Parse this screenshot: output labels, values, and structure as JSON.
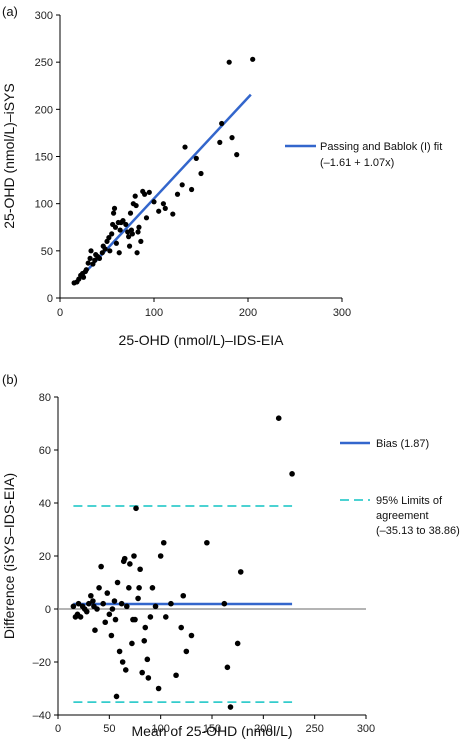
{
  "chart_data": [
    {
      "panel": "(a)",
      "type": "scatter",
      "xlabel": "25-OHD (nmol/L)–IDS-EIA",
      "ylabel": "25-OHD (nmol/L)–iSYS",
      "xlim": [
        0,
        300
      ],
      "ylim": [
        0,
        300
      ],
      "xticks": [
        0,
        100,
        200,
        300
      ],
      "yticks": [
        0,
        50,
        100,
        150,
        200,
        250,
        300
      ],
      "legend_position": "right",
      "series": [
        {
          "name_line1": "Passing and Bablok (I) fit",
          "name_line2": "(–1.61 + 1.07x)",
          "type": "line",
          "color": "#3366cc",
          "points": [
            [
              15,
              14.45
            ],
            [
              203,
              215.6
            ]
          ]
        },
        {
          "type": "scatter",
          "color": "#000000",
          "points": [
            [
              15,
              16
            ],
            [
              18,
              17
            ],
            [
              20,
              20
            ],
            [
              22,
              24
            ],
            [
              24,
              26
            ],
            [
              25,
              22
            ],
            [
              27,
              28
            ],
            [
              28,
              30
            ],
            [
              30,
              37
            ],
            [
              32,
              42
            ],
            [
              33,
              50
            ],
            [
              35,
              36
            ],
            [
              37,
              40
            ],
            [
              38,
              46
            ],
            [
              40,
              44
            ],
            [
              42,
              42
            ],
            [
              45,
              48
            ],
            [
              46,
              55
            ],
            [
              48,
              52
            ],
            [
              50,
              60
            ],
            [
              52,
              64
            ],
            [
              53,
              50
            ],
            [
              55,
              68
            ],
            [
              56,
              78
            ],
            [
              57,
              90
            ],
            [
              58,
              95
            ],
            [
              59,
              75
            ],
            [
              60,
              58
            ],
            [
              62,
              80
            ],
            [
              63,
              48
            ],
            [
              64,
              72
            ],
            [
              65,
              80
            ],
            [
              67,
              82
            ],
            [
              70,
              78
            ],
            [
              72,
              70
            ],
            [
              73,
              65
            ],
            [
              74,
              55
            ],
            [
              75,
              90
            ],
            [
              76,
              72
            ],
            [
              77,
              68
            ],
            [
              78,
              100
            ],
            [
              80,
              108
            ],
            [
              81,
              98
            ],
            [
              82,
              48
            ],
            [
              83,
              70
            ],
            [
              84,
              75
            ],
            [
              86,
              60
            ],
            [
              88,
              113
            ],
            [
              90,
              110
            ],
            [
              92,
              85
            ],
            [
              95,
              112
            ],
            [
              100,
              102
            ],
            [
              105,
              92
            ],
            [
              110,
              100
            ],
            [
              112,
              95
            ],
            [
              120,
              89
            ],
            [
              125,
              110
            ],
            [
              130,
              120
            ],
            [
              133,
              160
            ],
            [
              140,
              115
            ],
            [
              145,
              148
            ],
            [
              150,
              132
            ],
            [
              170,
              165
            ],
            [
              172,
              185
            ],
            [
              180,
              250
            ],
            [
              183,
              170
            ],
            [
              188,
              152
            ],
            [
              205,
              253
            ]
          ]
        }
      ]
    },
    {
      "panel": "(b)",
      "type": "scatter",
      "xlabel": "Mean of 25-OHD (nmol/L)",
      "ylabel": "Difference (iSYS–IDS-EIA)",
      "xlim": [
        0,
        300
      ],
      "ylim": [
        -40,
        80
      ],
      "xticks": [
        0,
        50,
        100,
        150,
        200,
        250,
        300
      ],
      "yticks": [
        -40,
        -20,
        0,
        20,
        40,
        60,
        80
      ],
      "legend_position": "right",
      "zero_line": 0,
      "series": [
        {
          "name": "Bias (1.87)",
          "type": "line",
          "color": "#3366cc",
          "value": 1.87,
          "x_range": [
            15,
            228
          ]
        },
        {
          "name_line1": "95% Limits of",
          "name_line2": "agreement",
          "name_line3": "(–35.13 to 38.86)",
          "type": "dashed",
          "color": "#33cccc",
          "values": [
            -35.13,
            38.86
          ],
          "x_range": [
            15,
            228
          ]
        },
        {
          "type": "scatter",
          "color": "#000000",
          "points": [
            [
              15,
              1
            ],
            [
              17,
              -3
            ],
            [
              19,
              -2
            ],
            [
              20,
              2
            ],
            [
              22,
              -3
            ],
            [
              24,
              1
            ],
            [
              26,
              0
            ],
            [
              28,
              -1
            ],
            [
              30,
              2
            ],
            [
              32,
              5
            ],
            [
              34,
              3
            ],
            [
              35,
              1
            ],
            [
              36,
              -8
            ],
            [
              38,
              0
            ],
            [
              40,
              8
            ],
            [
              42,
              16
            ],
            [
              44,
              2
            ],
            [
              46,
              -5
            ],
            [
              48,
              6
            ],
            [
              50,
              -2
            ],
            [
              52,
              -10
            ],
            [
              53,
              0
            ],
            [
              55,
              3
            ],
            [
              56,
              -4
            ],
            [
              57,
              -33
            ],
            [
              58,
              10
            ],
            [
              60,
              -16
            ],
            [
              62,
              2
            ],
            [
              63,
              -20
            ],
            [
              64,
              18
            ],
            [
              65,
              19
            ],
            [
              66,
              -23
            ],
            [
              67,
              1
            ],
            [
              69,
              8
            ],
            [
              70,
              17
            ],
            [
              72,
              -13
            ],
            [
              73,
              -4
            ],
            [
              74,
              20
            ],
            [
              75,
              -4
            ],
            [
              76,
              38
            ],
            [
              78,
              4
            ],
            [
              79,
              8
            ],
            [
              80,
              15
            ],
            [
              82,
              -24
            ],
            [
              84,
              -12
            ],
            [
              85,
              -7
            ],
            [
              87,
              -19
            ],
            [
              88,
              -26
            ],
            [
              90,
              -3
            ],
            [
              92,
              8
            ],
            [
              95,
              1
            ],
            [
              98,
              -30
            ],
            [
              100,
              20
            ],
            [
              103,
              25
            ],
            [
              105,
              -3
            ],
            [
              110,
              2
            ],
            [
              115,
              -25
            ],
            [
              120,
              -7
            ],
            [
              122,
              5
            ],
            [
              125,
              -16
            ],
            [
              130,
              -10
            ],
            [
              145,
              25
            ],
            [
              162,
              2
            ],
            [
              165,
              -22
            ],
            [
              168,
              -37
            ],
            [
              175,
              -13
            ],
            [
              178,
              14
            ],
            [
              215,
              72
            ],
            [
              228,
              51
            ]
          ]
        }
      ]
    }
  ]
}
